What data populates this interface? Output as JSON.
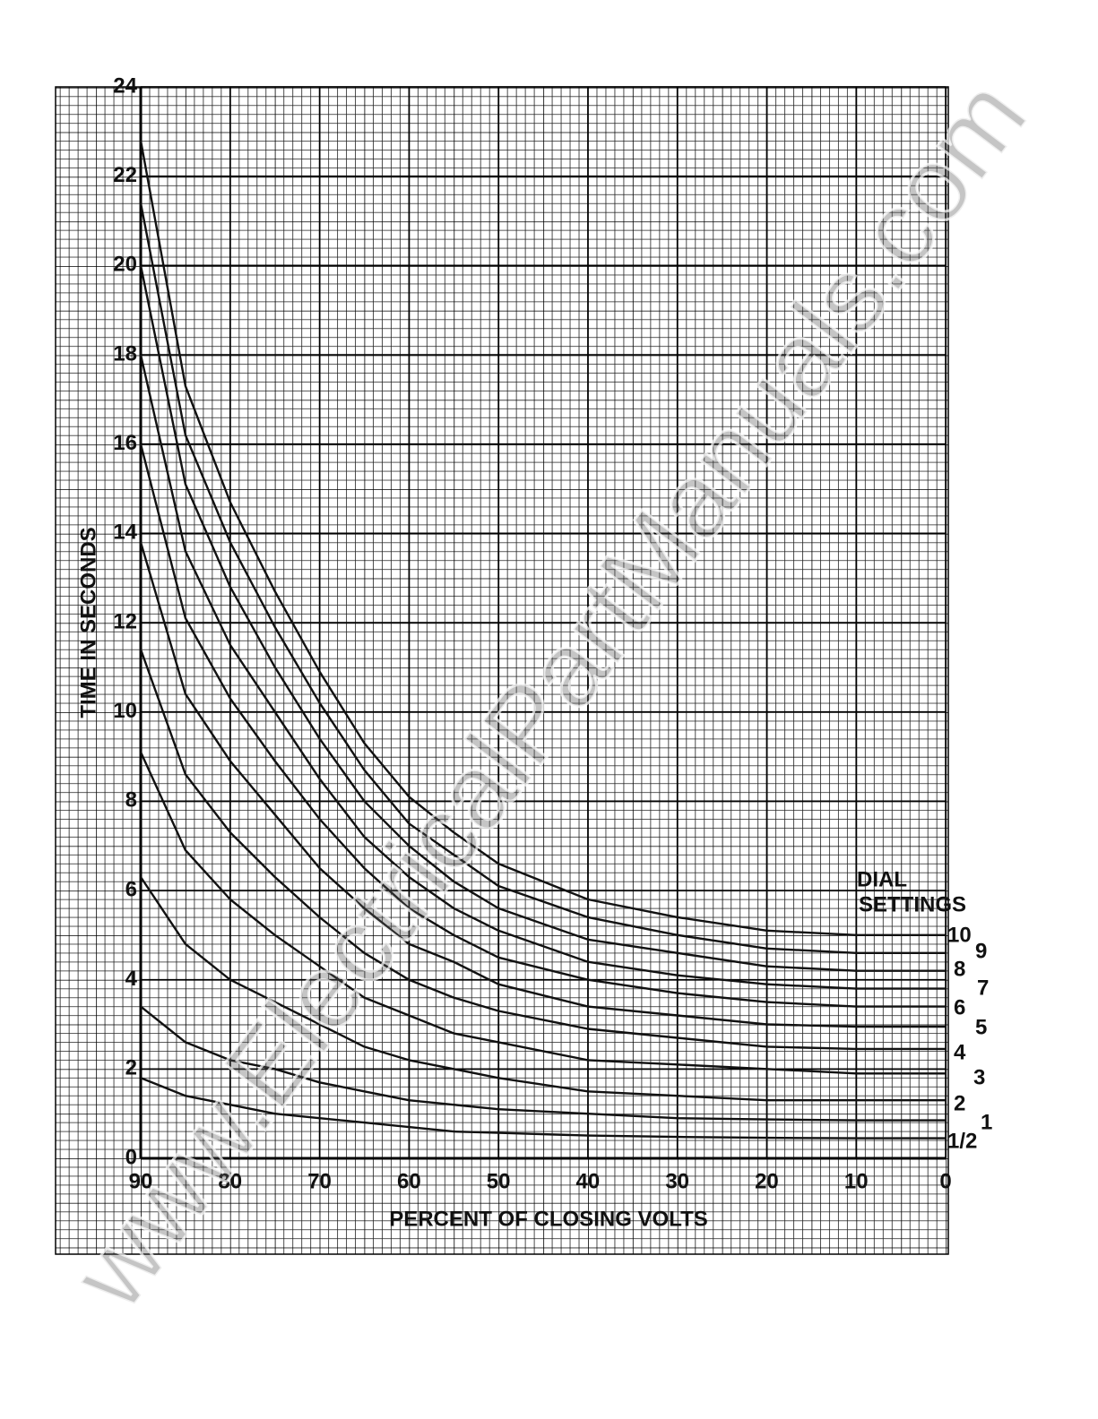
{
  "chart_data": {
    "type": "line",
    "y_label": "TIME IN SECONDS",
    "x_label": "PERCENT OF CLOSING VOLTS",
    "legend_title": [
      "DIAL",
      "SETTINGS"
    ],
    "watermark": "www.ElectricalPartManuals.com",
    "x": [
      90,
      85,
      80,
      75,
      70,
      65,
      60,
      55,
      50,
      40,
      30,
      20,
      10,
      0
    ],
    "xlim": [
      90,
      0
    ],
    "xticks": [
      90,
      80,
      70,
      60,
      50,
      40,
      30,
      20,
      10,
      0
    ],
    "ylim": [
      0,
      24
    ],
    "yticks": [
      0,
      2,
      4,
      6,
      8,
      10,
      12,
      14,
      16,
      18,
      20,
      22,
      24
    ],
    "grid": true,
    "series": [
      {
        "name": "10",
        "color": "#111111",
        "values": [
          22.8,
          17.3,
          14.7,
          12.7,
          10.9,
          9.3,
          8.1,
          7.3,
          6.6,
          5.8,
          5.4,
          5.1,
          5.0,
          5.0
        ]
      },
      {
        "name": "9",
        "color": "#111111",
        "values": [
          21.4,
          16.2,
          13.8,
          11.9,
          10.2,
          8.7,
          7.5,
          6.8,
          6.1,
          5.4,
          5.0,
          4.7,
          4.6,
          4.6
        ]
      },
      {
        "name": "8",
        "color": "#111111",
        "values": [
          20.0,
          15.1,
          12.8,
          11.0,
          9.4,
          8.0,
          7.0,
          6.2,
          5.6,
          4.9,
          4.6,
          4.3,
          4.2,
          4.2
        ]
      },
      {
        "name": "7",
        "color": "#111111",
        "values": [
          18.0,
          13.6,
          11.5,
          10.0,
          8.5,
          7.2,
          6.3,
          5.6,
          5.1,
          4.4,
          4.1,
          3.9,
          3.8,
          3.8
        ]
      },
      {
        "name": "6",
        "color": "#111111",
        "values": [
          16.0,
          12.1,
          10.3,
          8.9,
          7.6,
          6.5,
          5.6,
          5.0,
          4.5,
          4.0,
          3.7,
          3.5,
          3.4,
          3.4
        ]
      },
      {
        "name": "5",
        "color": "#111111",
        "values": [
          13.8,
          10.4,
          8.9,
          7.7,
          6.5,
          5.6,
          4.8,
          4.4,
          3.9,
          3.4,
          3.2,
          3.0,
          2.95,
          2.95
        ]
      },
      {
        "name": "4",
        "color": "#111111",
        "values": [
          11.4,
          8.6,
          7.3,
          6.3,
          5.4,
          4.6,
          4.0,
          3.6,
          3.3,
          2.9,
          2.7,
          2.5,
          2.45,
          2.45
        ]
      },
      {
        "name": "3",
        "color": "#111111",
        "values": [
          9.1,
          6.9,
          5.8,
          5.0,
          4.3,
          3.6,
          3.2,
          2.8,
          2.6,
          2.2,
          2.1,
          2.0,
          1.9,
          1.9
        ]
      },
      {
        "name": "2",
        "color": "#111111",
        "values": [
          6.3,
          4.8,
          4.0,
          3.5,
          3.0,
          2.5,
          2.2,
          2.0,
          1.8,
          1.5,
          1.4,
          1.3,
          1.3,
          1.3
        ]
      },
      {
        "name": "1",
        "color": "#111111",
        "values": [
          3.4,
          2.6,
          2.2,
          2.0,
          1.7,
          1.5,
          1.3,
          1.2,
          1.1,
          1.0,
          0.9,
          0.87,
          0.85,
          0.85
        ]
      },
      {
        "name": "1/2",
        "color": "#111111",
        "values": [
          1.8,
          1.4,
          1.2,
          1.0,
          0.9,
          0.8,
          0.7,
          0.6,
          0.57,
          0.51,
          0.48,
          0.46,
          0.45,
          0.45
        ]
      }
    ]
  }
}
